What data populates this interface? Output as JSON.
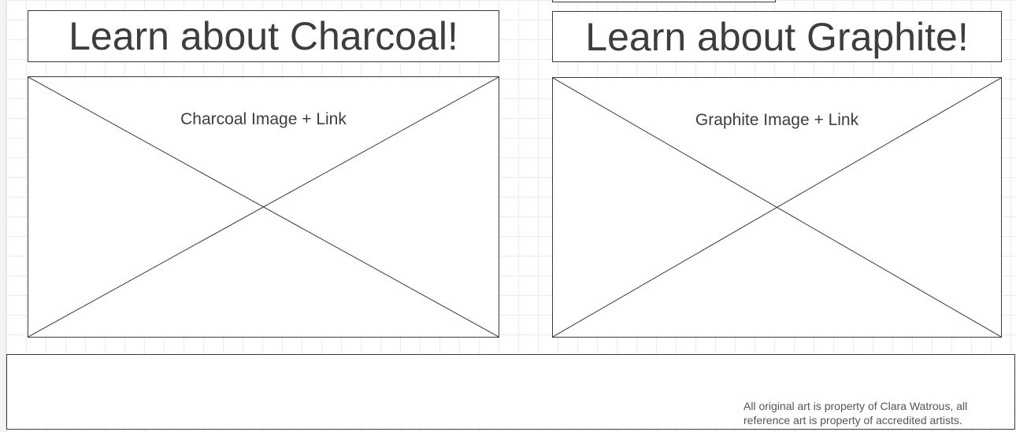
{
  "charcoal": {
    "title": "Learn about Charcoal!",
    "image_label": "Charcoal Image + Link"
  },
  "graphite": {
    "title": "Learn about Graphite!",
    "image_label": "Graphite Image + Link"
  },
  "footer": {
    "copyright": "All original art is property of Clara Watrous, all reference art is property of accredited artists."
  },
  "colors": {
    "stroke": "#3a3a3a",
    "text": "#3d3d3d",
    "grid": "#ececec"
  }
}
